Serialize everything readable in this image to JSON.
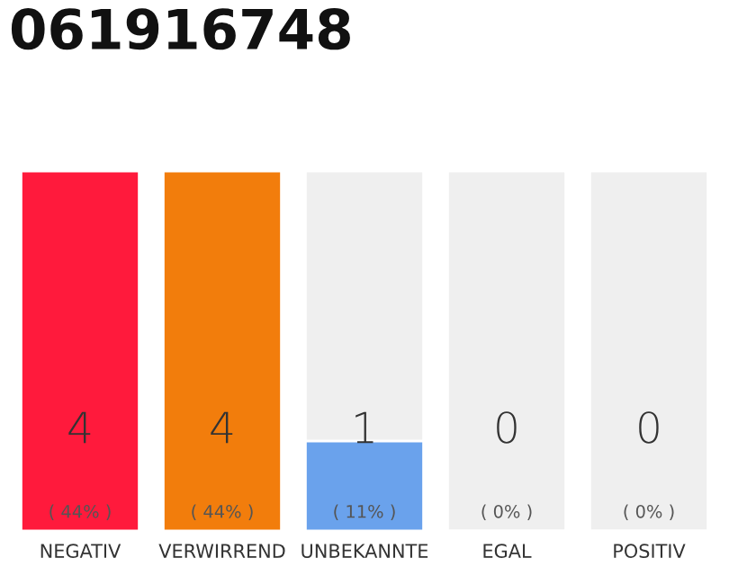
{
  "chart_data": {
    "type": "bar",
    "title": "061916748",
    "categories": [
      "NEGATIV",
      "VERWIRREND",
      "UNBEKANNTE",
      "EGAL",
      "POSITIV"
    ],
    "values": [
      4,
      4,
      1,
      0,
      0
    ],
    "colors": [
      "#ff1a3c",
      "#f27d0c",
      "#6aa2ec",
      null,
      null
    ],
    "data_labels": true,
    "annotations": [
      "( 44% )",
      "( 44% )",
      "( 11% )",
      "( 0% )",
      "( 0% )"
    ],
    "legend": false
  }
}
